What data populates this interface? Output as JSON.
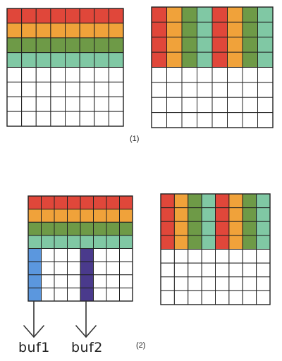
{
  "colors": {
    "red": "#e0473a",
    "orange": "#f0a23a",
    "green": "#6e9a47",
    "teal": "#80c8a4",
    "blue": "#5b97de",
    "purple": "#4a3a8c",
    "empty": "#ffffff",
    "line": "#222222"
  },
  "row_palette": [
    "red",
    "orange",
    "green",
    "teal"
  ],
  "interleave_pattern": [
    "red",
    "orange",
    "green",
    "teal",
    "red",
    "orange",
    "green",
    "teal"
  ],
  "grid": {
    "rows": 8,
    "cols": 8,
    "filled_rows": 4
  },
  "labels": {
    "panel1": "(1)",
    "panel2": "(2)",
    "buf1": "buf1",
    "buf2": "buf2"
  },
  "buffers": [
    {
      "name": "buf1",
      "column": 0,
      "rows": [
        4,
        5,
        6,
        7
      ],
      "color": "blue"
    },
    {
      "name": "buf2",
      "column": 4,
      "rows": [
        4,
        5,
        6,
        7
      ],
      "color": "purple"
    }
  ]
}
